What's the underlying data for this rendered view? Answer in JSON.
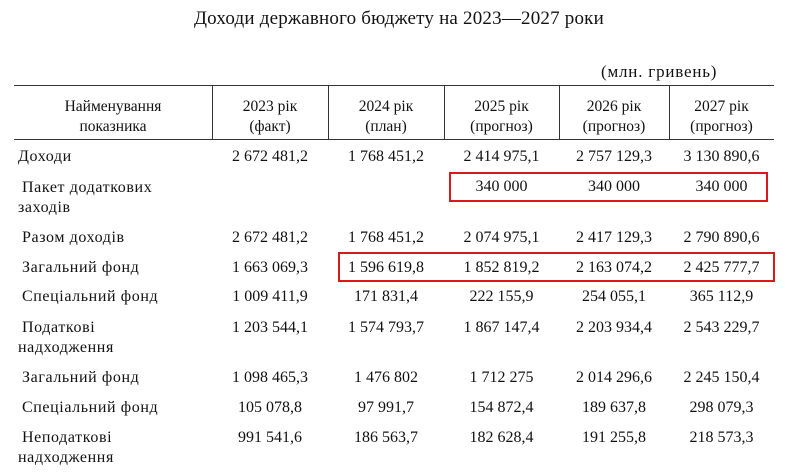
{
  "title": "Доходи державного бюджету на 2023—2027 роки",
  "unit": "(млн. гривень)",
  "columns": [
    {
      "line1": "Найменування",
      "line2": "показника"
    },
    {
      "line1": "2023 рік",
      "line2": "(факт)"
    },
    {
      "line1": "2024 рік",
      "line2": "(план)"
    },
    {
      "line1": "2025 рік",
      "line2": "(прогноз)"
    },
    {
      "line1": "2026 рік",
      "line2": "(прогноз)"
    },
    {
      "line1": "2027 рік",
      "line2": "(прогноз)"
    }
  ],
  "rows": [
    {
      "label1": "Доходи",
      "label2": "",
      "values": [
        "2 672 481,2",
        "1 768 451,2",
        "2 414 975,1",
        "2 757 129,3",
        "3 130 890,6"
      ]
    },
    {
      "label1": "Пакет додаткових",
      "label2": "заходів",
      "values": [
        "",
        "",
        "340 000",
        "340 000",
        "340 000"
      ]
    },
    {
      "label1": "Разом доходів",
      "label2": "",
      "values": [
        "2 672 481,2",
        "1 768 451,2",
        "2 074 975,1",
        "2 417 129,3",
        "2 790 890,6"
      ]
    },
    {
      "label1": "Загальний фонд",
      "label2": "",
      "values": [
        "1 663 069,3",
        "1 596 619,8",
        "1 852 819,2",
        "2 163 074,2",
        "2 425 777,7"
      ]
    },
    {
      "label1": "Спеціальний фонд",
      "label2": "",
      "values": [
        "1 009 411,9",
        "171 831,4",
        "222 155,9",
        "254 055,1",
        "365 112,9"
      ]
    },
    {
      "label1": "Податкові",
      "label2": "надходження",
      "values": [
        "1 203 544,1",
        "1 574 793,7",
        "1 867 147,4",
        "2 203 934,4",
        "2 543 229,7"
      ]
    },
    {
      "label1": "Загальний фонд",
      "label2": "",
      "values": [
        "1 098 465,3",
        "1 476 802",
        "1 712 275",
        "2 014 296,6",
        "2 245 150,4"
      ]
    },
    {
      "label1": "Спеціальний фонд",
      "label2": "",
      "values": [
        "105 078,8",
        "97 991,7",
        "154 872,4",
        "189 637,8",
        "298 079,3"
      ]
    },
    {
      "label1": "Неподаткові",
      "label2": "надходження",
      "values": [
        "991 541,6",
        "186 563,7",
        "182 628,4",
        "191 255,8",
        "218 573,3"
      ]
    }
  ],
  "highlight_color": "#d81a1a"
}
